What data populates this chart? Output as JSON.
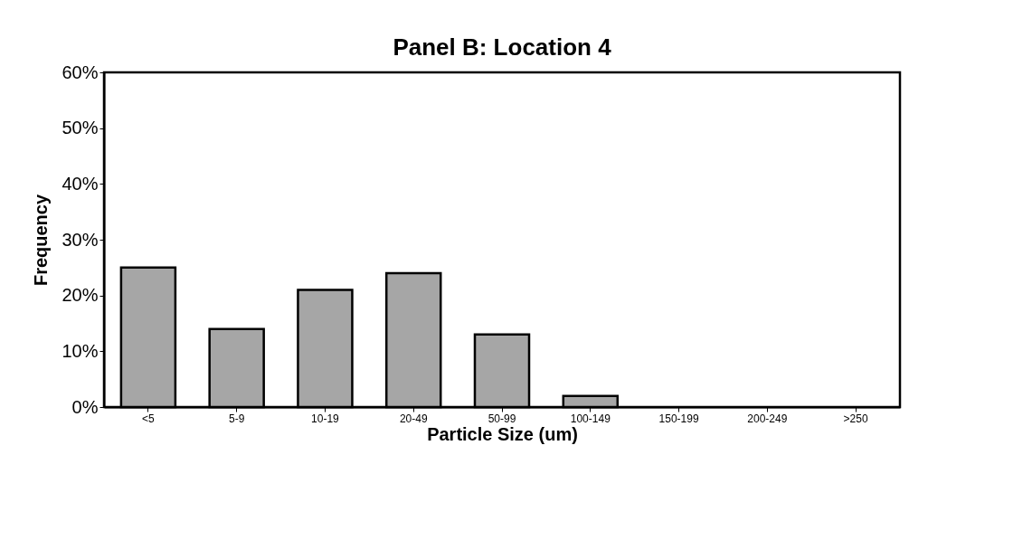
{
  "chart_data": {
    "type": "bar",
    "title": "Panel B:  Location 4",
    "xlabel": "Particle Size (um)",
    "ylabel": "Frequency",
    "categories": [
      "<5",
      "5-9",
      "10-19",
      "20-49",
      "50-99",
      "100-149",
      "150-199",
      "200-249",
      ">250"
    ],
    "values": [
      25,
      14,
      21,
      24,
      13,
      2,
      0,
      0,
      0
    ],
    "color": "#a6a6a6",
    "ylim": [
      0,
      60
    ],
    "yticks": [
      {
        "value": 0,
        "label": "0%"
      },
      {
        "value": 10,
        "label": "10%"
      },
      {
        "value": 20,
        "label": "20%"
      },
      {
        "value": 30,
        "label": "30%"
      },
      {
        "value": 40,
        "label": "40%"
      },
      {
        "value": 50,
        "label": "50%"
      },
      {
        "value": 60,
        "label": "60%"
      }
    ],
    "grid": false
  }
}
